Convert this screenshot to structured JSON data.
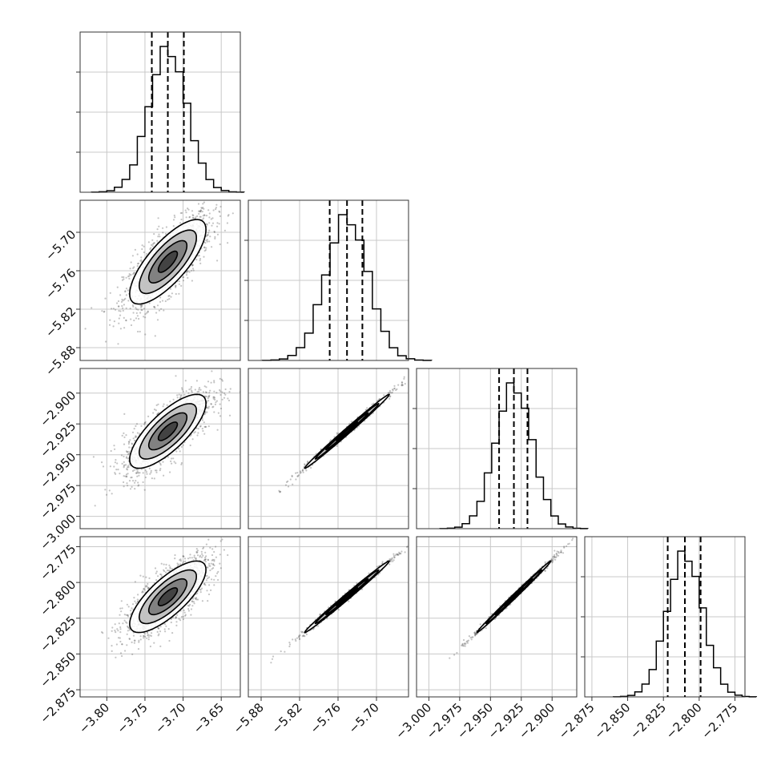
{
  "chart_data": {
    "type": "corner",
    "parameters": [
      {
        "range": [
          -3.835,
          -3.625
        ],
        "ticks": [
          -3.8,
          -3.75,
          -3.7,
          -3.65
        ],
        "tick_labels": [
          "−3.80",
          "−3.75",
          "−3.70",
          "−3.65"
        ],
        "mean": -3.72,
        "sd": 0.025,
        "quantiles": [
          -3.741,
          -3.72,
          -3.699
        ]
      },
      {
        "range": [
          -5.9,
          -5.65
        ],
        "ticks": [
          -5.88,
          -5.82,
          -5.76,
          -5.7
        ],
        "tick_labels": [
          "−5.88",
          "−5.82",
          "−5.76",
          "−5.70"
        ],
        "mean": -5.746,
        "sd": 0.033,
        "quantiles": [
          -5.773,
          -5.746,
          -5.722
        ]
      },
      {
        "range": [
          -3.01,
          -2.88
        ],
        "ticks": [
          -3.0,
          -2.975,
          -2.95,
          -2.925,
          -2.9
        ],
        "tick_labels": [
          "−3.000",
          "−2.975",
          "−2.950",
          "−2.925",
          "−2.900"
        ],
        "mean": -2.931,
        "sd": 0.015,
        "quantiles": [
          -2.943,
          -2.931,
          -2.92
        ]
      },
      {
        "range": [
          -2.88,
          -2.768
        ],
        "ticks": [
          -2.875,
          -2.85,
          -2.825,
          -2.8,
          -2.775
        ],
        "tick_labels": [
          "−2.875",
          "−2.850",
          "−2.825",
          "−2.800",
          "−2.775"
        ],
        "mean": -2.81,
        "sd": 0.0125,
        "quantiles": [
          -2.822,
          -2.81,
          -2.799
        ]
      }
    ],
    "correlations": [
      [
        1.0,
        0.76,
        0.76,
        0.76
      ],
      [
        0.76,
        1.0,
        0.995,
        0.995
      ],
      [
        0.76,
        0.995,
        1.0,
        0.997
      ],
      [
        0.76,
        0.995,
        0.997,
        1.0
      ]
    ],
    "histogram_bins": 20,
    "contour_levels_sigma": [
      0.5,
      1.0,
      1.5,
      2.0
    ],
    "grid": true,
    "colors": {
      "line": "#000000",
      "points": "#555555",
      "grid": "#c8c8c8"
    }
  }
}
